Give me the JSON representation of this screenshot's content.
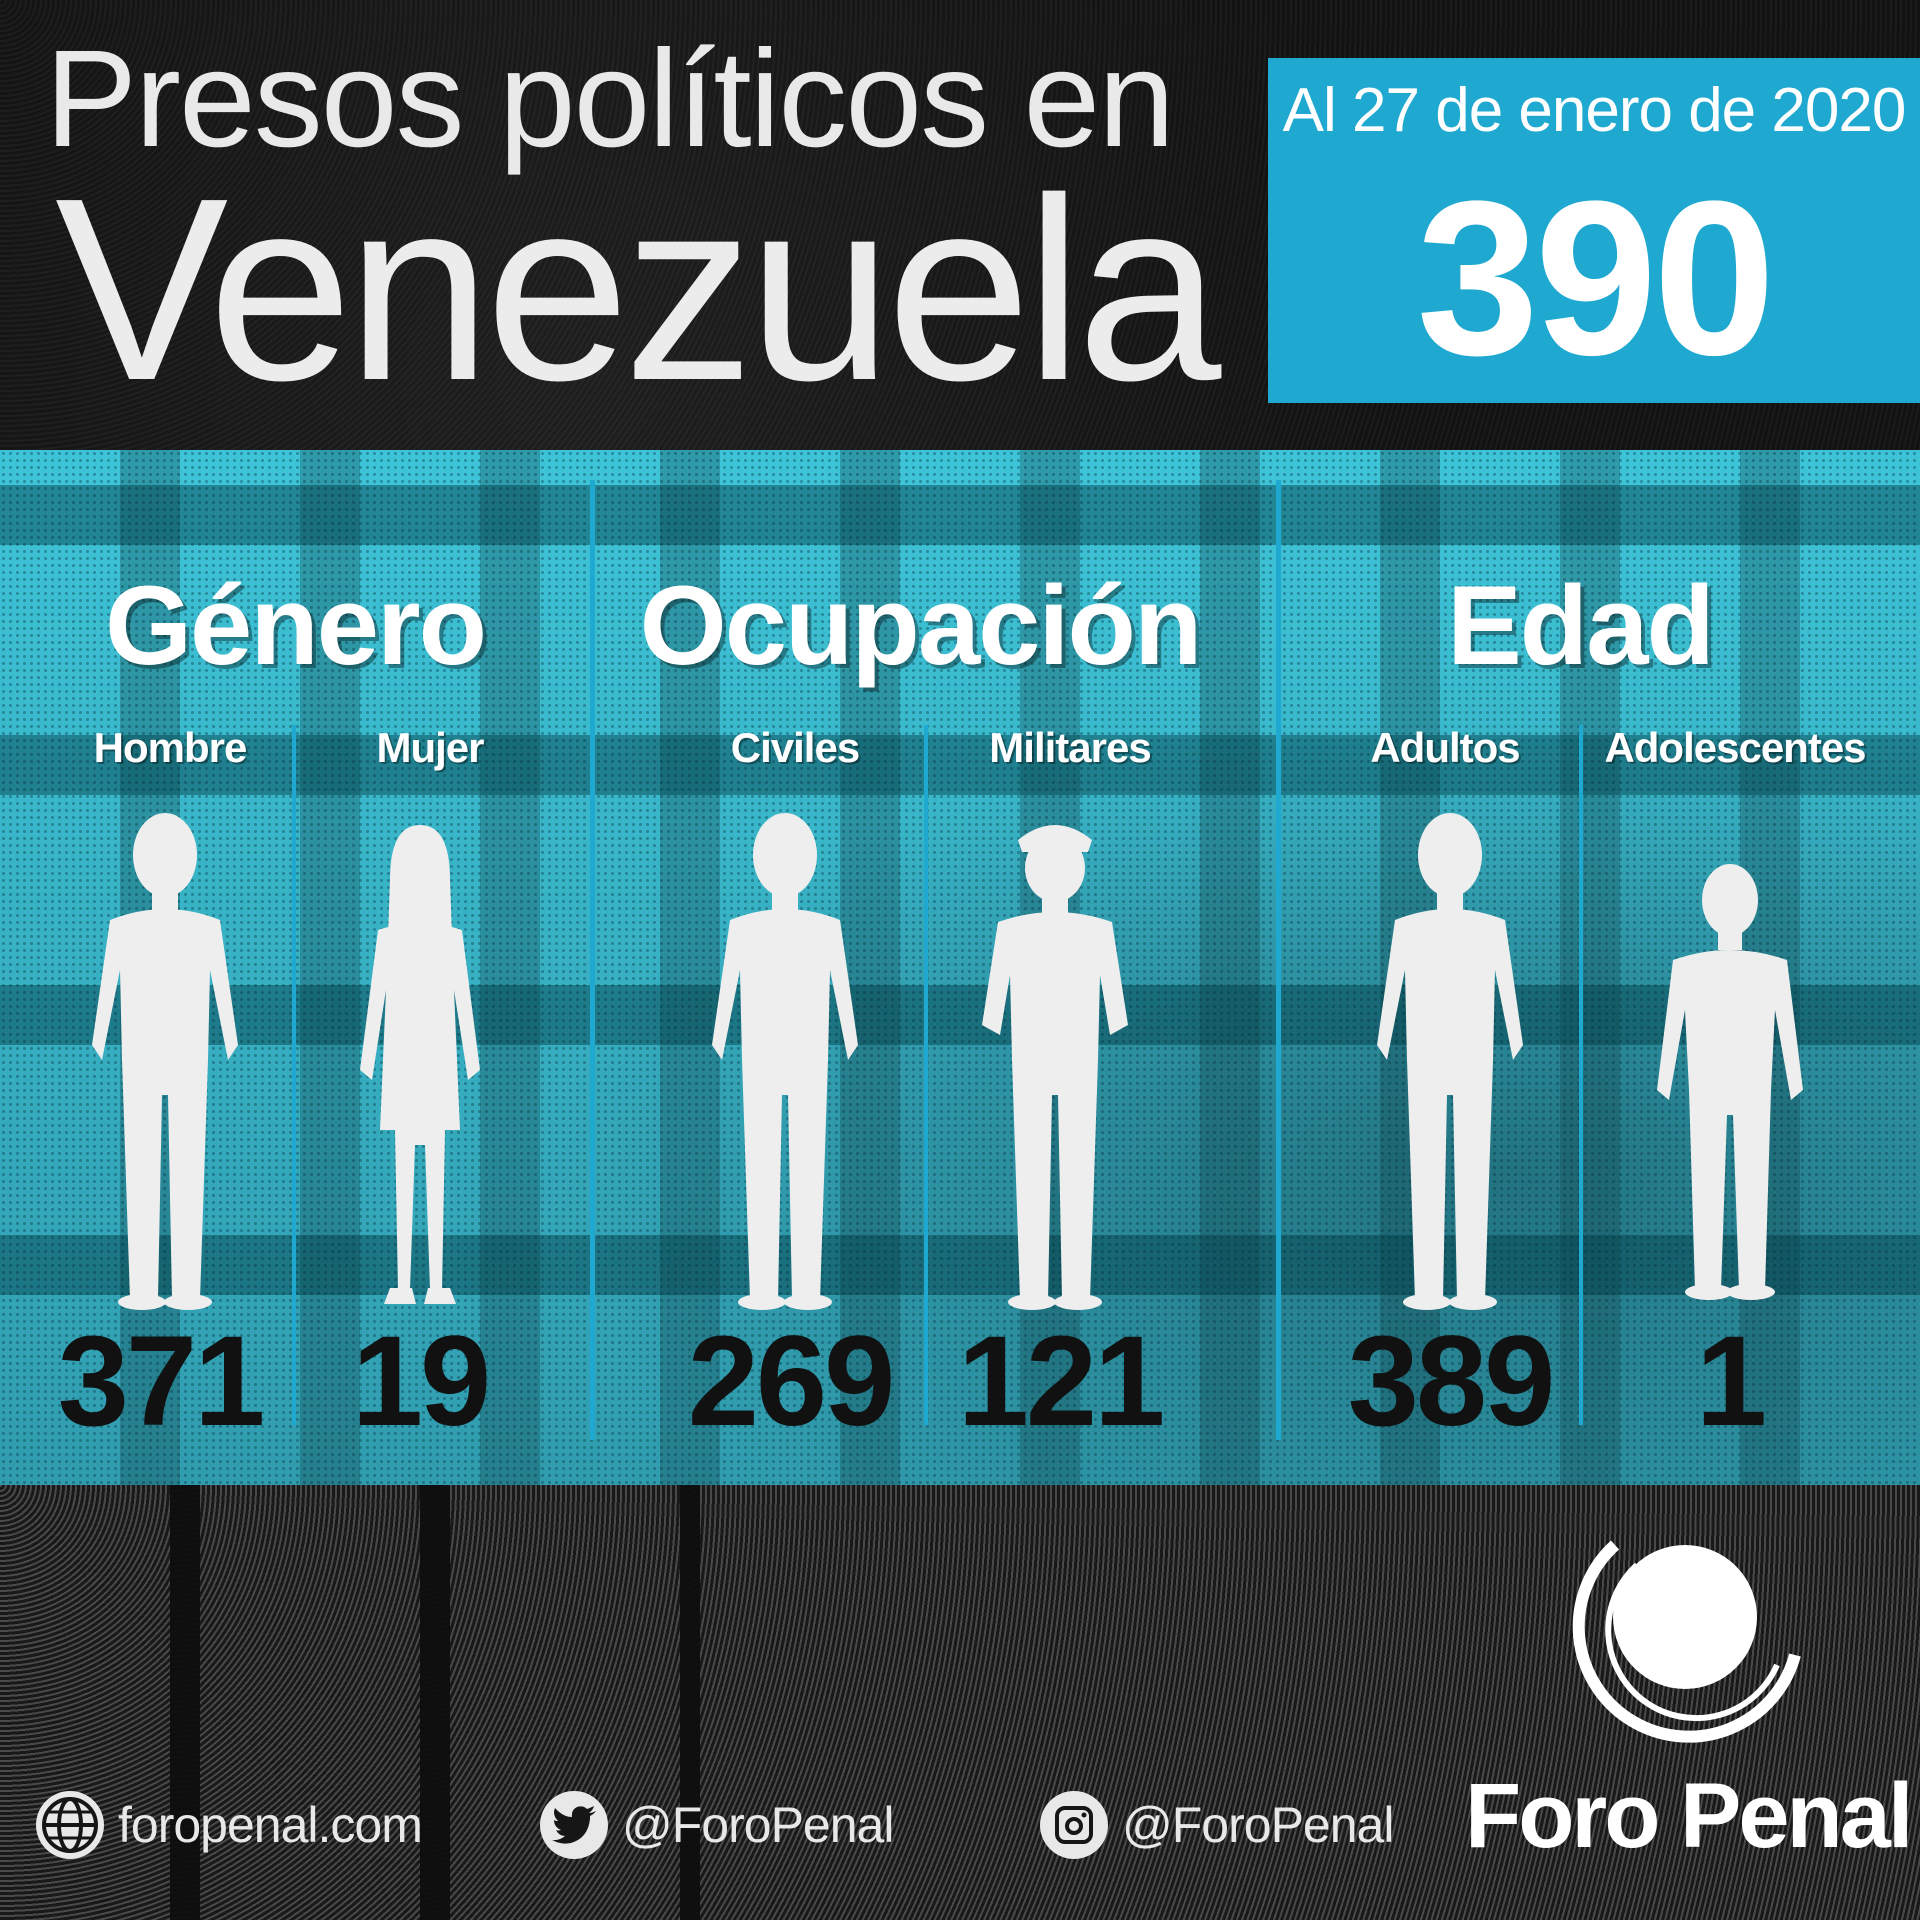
{
  "title": {
    "line1": "Presos políticos en",
    "line2": "Venezuela"
  },
  "total": {
    "date_label": "Al 27 de enero de 2020",
    "value": "390"
  },
  "colors": {
    "accent": "#1fa8d0",
    "band_light": "#3fc3d7",
    "band_dark": "#2b8c9a",
    "figure": "#eeeeee",
    "count_text": "#111111"
  },
  "sections": [
    {
      "heading": "Género",
      "groups": [
        {
          "label": "Hombre",
          "count": "371",
          "icon": "man-silhouette-icon"
        },
        {
          "label": "Mujer",
          "count": "19",
          "icon": "woman-silhouette-icon"
        }
      ]
    },
    {
      "heading": "Ocupación",
      "groups": [
        {
          "label": "Civiles",
          "count": "269",
          "icon": "civilian-silhouette-icon"
        },
        {
          "label": "Militares",
          "count": "121",
          "icon": "soldier-silhouette-icon"
        }
      ]
    },
    {
      "heading": "Edad",
      "groups": [
        {
          "label": "Adultos",
          "count": "389",
          "icon": "adult-silhouette-icon"
        },
        {
          "label": "Adolescentes",
          "count": "1",
          "icon": "teen-silhouette-icon"
        }
      ]
    }
  ],
  "footer": {
    "website": {
      "icon": "globe-icon",
      "text": "foropenal.com"
    },
    "twitter": {
      "icon": "twitter-bird-icon",
      "text": "@ForoPenal"
    },
    "instagram": {
      "icon": "instagram-camera-icon",
      "text": "@ForoPenal"
    },
    "brand": {
      "icon": "foro-penal-logo-icon",
      "text": "Foro Penal"
    }
  }
}
